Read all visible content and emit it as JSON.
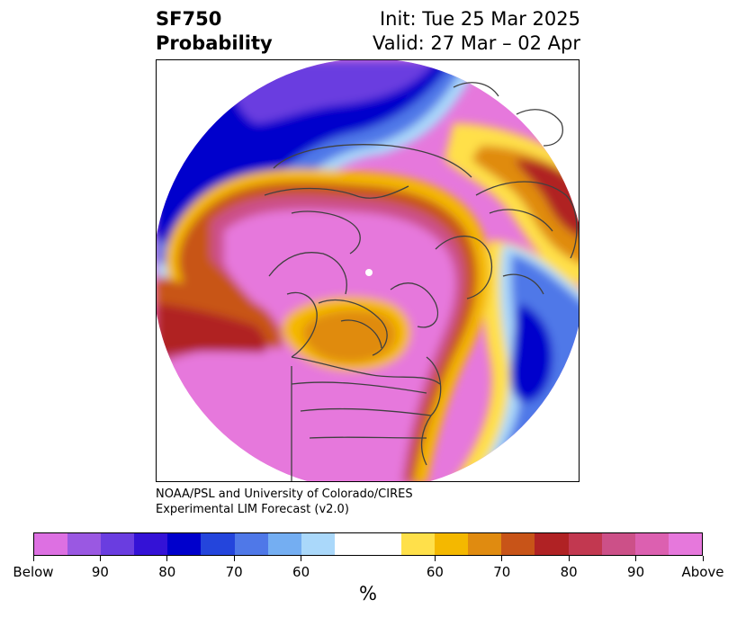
{
  "header": {
    "title_line1": "SF750",
    "title_line2": "Probability",
    "init_text": "Init: Tue 25 Mar 2025",
    "valid_text": "Valid: 27 Mar – 02 Apr"
  },
  "credit": {
    "line1": "NOAA/PSL and University of Colorado/CIRES",
    "line2": "Experimental LIM Forecast (v2.0)"
  },
  "colorbar": {
    "unit": "%",
    "colors": [
      "#dd70e2",
      "#9a58e2",
      "#6a3de0",
      "#3412d6",
      "#0000cc",
      "#2445dc",
      "#4f78e8",
      "#74aef2",
      "#aad8fa",
      "#ffffff",
      "#ffe04a",
      "#f4b800",
      "#e08b10",
      "#c85418",
      "#b02224",
      "#c23850",
      "#cc5088",
      "#dc60b0",
      "#e678dc"
    ],
    "tick_labels": [
      "Below",
      "90",
      "80",
      "70",
      "60",
      "60",
      "70",
      "80",
      "90",
      "Above"
    ]
  },
  "map": {
    "projection": "north-polar-stereographic",
    "variable": "SF750 probability"
  }
}
